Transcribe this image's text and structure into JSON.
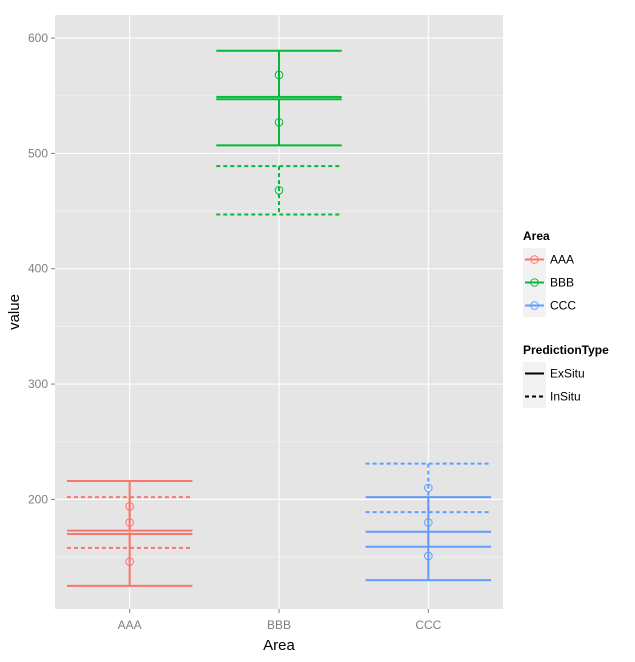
{
  "chart_data": {
    "type": "errorbar",
    "xlabel": "Area",
    "ylabel": "value",
    "categories": [
      "AAA",
      "BBB",
      "CCC"
    ],
    "ylim": [
      105,
      620
    ],
    "yticks": [
      200,
      300,
      400,
      500,
      600
    ],
    "grid": true,
    "background": "#e5e5e5",
    "legend_position": "right",
    "legends": [
      {
        "title": "Area",
        "entries": [
          {
            "label": "AAA",
            "color": "#f8766d"
          },
          {
            "label": "BBB",
            "color": "#00ba38"
          },
          {
            "label": "CCC",
            "color": "#619cff"
          }
        ]
      },
      {
        "title": "PredictionType",
        "entries": [
          {
            "label": "ExSitu",
            "linetype": "solid"
          },
          {
            "label": "InSitu",
            "linetype": "dashed"
          }
        ]
      }
    ],
    "points": [
      {
        "area": "AAA",
        "type": "ExSitu",
        "y": 146,
        "ymin": 125,
        "ymax": 170
      },
      {
        "area": "AAA",
        "type": "ExSitu",
        "y": 180,
        "ymin": 173,
        "ymax": 216
      },
      {
        "area": "AAA",
        "type": "InSitu",
        "y": 194,
        "ymin": 158,
        "ymax": 202
      },
      {
        "area": "BBB",
        "type": "ExSitu",
        "y": 527,
        "ymin": 507,
        "ymax": 547
      },
      {
        "area": "BBB",
        "type": "ExSitu",
        "y": 568,
        "ymin": 549,
        "ymax": 589
      },
      {
        "area": "BBB",
        "type": "InSitu",
        "y": 468,
        "ymin": 447,
        "ymax": 489
      },
      {
        "area": "CCC",
        "type": "ExSitu",
        "y": 151,
        "ymin": 130,
        "ymax": 172
      },
      {
        "area": "CCC",
        "type": "ExSitu",
        "y": 180,
        "ymin": 159,
        "ymax": 202
      },
      {
        "area": "CCC",
        "type": "InSitu",
        "y": 210,
        "ymin": 189,
        "ymax": 231
      }
    ]
  }
}
